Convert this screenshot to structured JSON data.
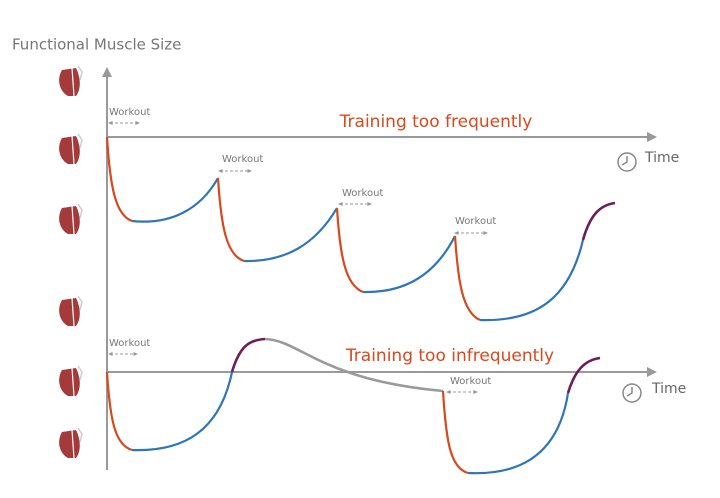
{
  "header": {
    "title": "Functional Muscle Size"
  },
  "panels": [
    {
      "label": "Training too frequently",
      "axis_label": "Time",
      "workouts": [
        "Workout",
        "Workout",
        "Workout",
        "Workout"
      ]
    },
    {
      "label": "Training too infrequently",
      "axis_label": "Time",
      "workouts": [
        "Workout",
        "Workout"
      ]
    }
  ]
}
